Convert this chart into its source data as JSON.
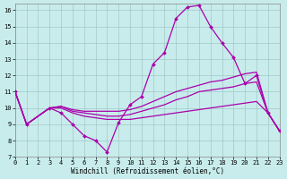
{
  "xlabel": "Windchill (Refroidissement éolien,°C)",
  "background_color": "#c8ecec",
  "grid_color": "#a0c8c8",
  "line_color": "#aa00aa",
  "xlim": [
    0,
    23
  ],
  "ylim": [
    7,
    16.4
  ],
  "yticks": [
    7,
    8,
    9,
    10,
    11,
    12,
    13,
    14,
    15,
    16
  ],
  "xticks": [
    0,
    1,
    2,
    3,
    4,
    5,
    6,
    7,
    8,
    9,
    10,
    11,
    12,
    13,
    14,
    15,
    16,
    17,
    18,
    19,
    20,
    21,
    22,
    23
  ],
  "series1_x": [
    0,
    1,
    3,
    4,
    5,
    6,
    7,
    8,
    9,
    10,
    11,
    12,
    13,
    14,
    15,
    16,
    17,
    18,
    19,
    20,
    21,
    22,
    23
  ],
  "series1_y": [
    11.0,
    9.0,
    10.0,
    9.7,
    9.0,
    8.3,
    8.0,
    7.3,
    9.1,
    10.2,
    10.7,
    12.7,
    13.4,
    15.5,
    16.2,
    16.3,
    15.0,
    14.0,
    13.1,
    11.5,
    12.0,
    9.7,
    8.6
  ],
  "series2_x": [
    0,
    1,
    3,
    4,
    5,
    6,
    7,
    8,
    9,
    10,
    11,
    12,
    13,
    14,
    15,
    16,
    17,
    18,
    19,
    20,
    21,
    22,
    23
  ],
  "series2_y": [
    11.0,
    9.0,
    10.0,
    10.0,
    9.7,
    9.5,
    9.4,
    9.3,
    9.3,
    9.3,
    9.4,
    9.5,
    9.6,
    9.7,
    9.8,
    9.9,
    10.0,
    10.1,
    10.2,
    10.3,
    10.4,
    9.7,
    8.6
  ],
  "series3_x": [
    0,
    1,
    3,
    4,
    5,
    6,
    7,
    8,
    9,
    10,
    11,
    12,
    13,
    14,
    15,
    16,
    17,
    18,
    19,
    20,
    21,
    22,
    23
  ],
  "series3_y": [
    11.0,
    9.0,
    10.0,
    10.1,
    9.8,
    9.7,
    9.6,
    9.5,
    9.5,
    9.6,
    9.8,
    10.0,
    10.2,
    10.5,
    10.7,
    11.0,
    11.1,
    11.2,
    11.3,
    11.5,
    11.6,
    9.7,
    8.6
  ],
  "series4_x": [
    0,
    1,
    3,
    4,
    5,
    6,
    7,
    8,
    9,
    10,
    11,
    12,
    13,
    14,
    15,
    16,
    17,
    18,
    19,
    20,
    21,
    22,
    23
  ],
  "series4_y": [
    11.0,
    9.0,
    10.0,
    10.1,
    9.9,
    9.8,
    9.8,
    9.8,
    9.8,
    9.9,
    10.1,
    10.4,
    10.7,
    11.0,
    11.2,
    11.4,
    11.6,
    11.7,
    11.9,
    12.1,
    12.2,
    9.7,
    8.6
  ],
  "tick_fontsize": 5,
  "xlabel_fontsize": 5.5,
  "linewidth": 0.9,
  "markersize": 2.0
}
